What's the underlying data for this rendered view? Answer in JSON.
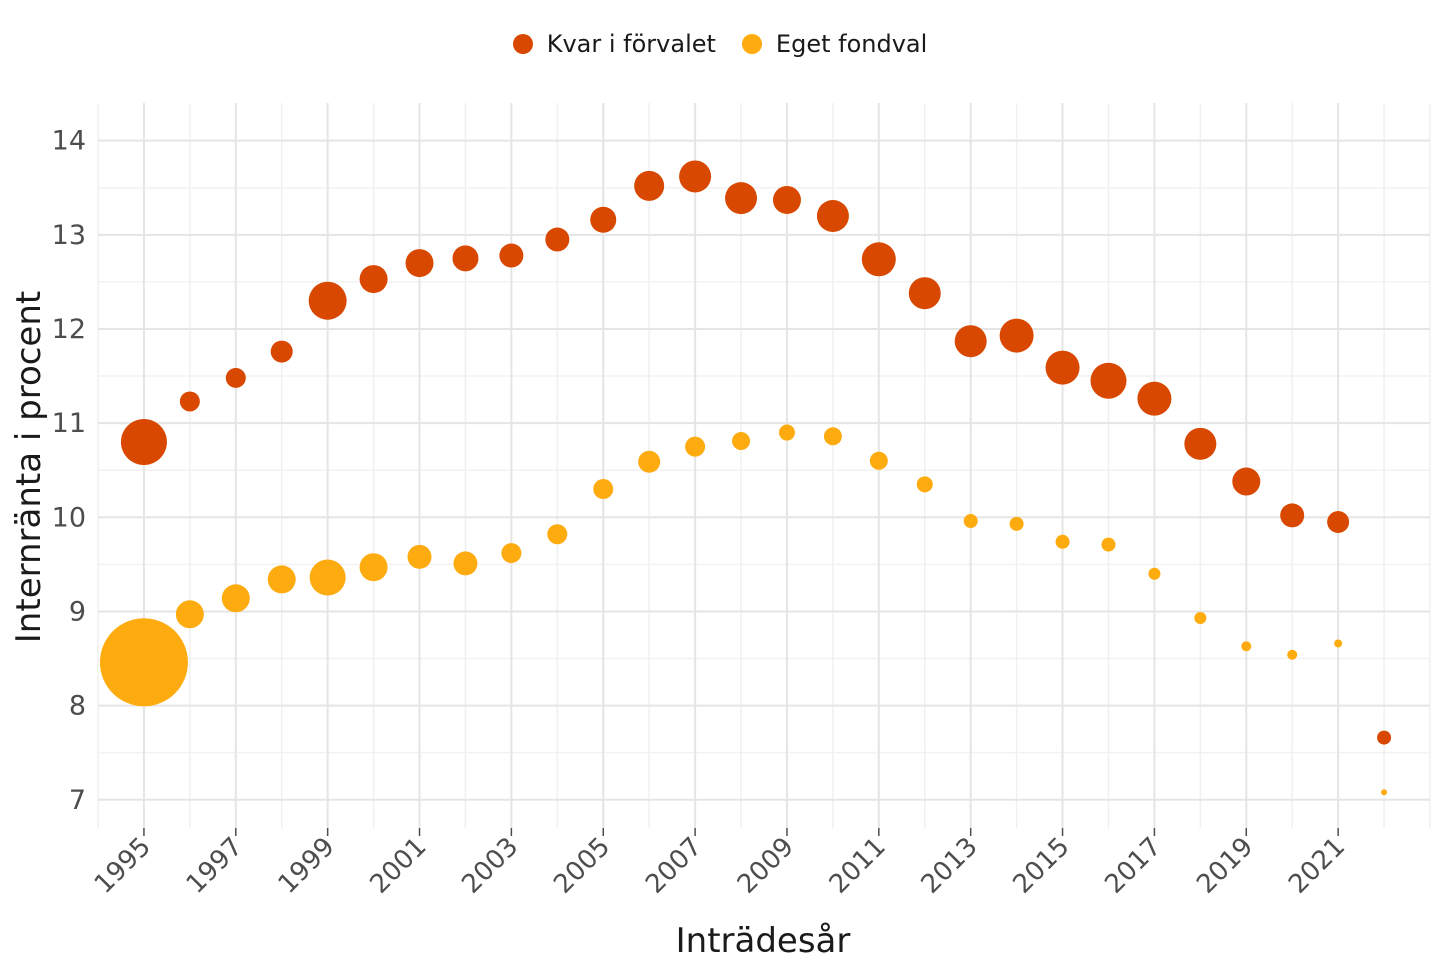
{
  "chart_data": {
    "type": "scatter",
    "xlabel": "Inträdesår",
    "ylabel": "Internränta i procent",
    "xlim": [
      1994,
      2023
    ],
    "ylim": [
      6.7,
      14.4
    ],
    "y_ticks": [
      7,
      8,
      9,
      10,
      11,
      12,
      13,
      14
    ],
    "x_tick_labels": [
      "1995",
      "1997",
      "1999",
      "2001",
      "2003",
      "2005",
      "2007",
      "2009",
      "2011",
      "2013",
      "2015",
      "2017",
      "2019",
      "2021"
    ],
    "grid": true,
    "legend": {
      "position": "top"
    },
    "series": [
      {
        "name": "Kvar i förvalet",
        "color": "#d94801",
        "points": [
          {
            "x": 1995,
            "y": 10.8,
            "size": 23
          },
          {
            "x": 1996,
            "y": 11.23,
            "size": 10
          },
          {
            "x": 1997,
            "y": 11.48,
            "size": 10
          },
          {
            "x": 1998,
            "y": 11.76,
            "size": 11
          },
          {
            "x": 1999,
            "y": 12.3,
            "size": 19
          },
          {
            "x": 2000,
            "y": 12.53,
            "size": 14
          },
          {
            "x": 2001,
            "y": 12.7,
            "size": 14
          },
          {
            "x": 2002,
            "y": 12.75,
            "size": 13
          },
          {
            "x": 2003,
            "y": 12.78,
            "size": 12
          },
          {
            "x": 2004,
            "y": 12.95,
            "size": 12
          },
          {
            "x": 2005,
            "y": 13.16,
            "size": 13
          },
          {
            "x": 2006,
            "y": 13.52,
            "size": 15
          },
          {
            "x": 2007,
            "y": 13.62,
            "size": 16
          },
          {
            "x": 2008,
            "y": 13.39,
            "size": 16
          },
          {
            "x": 2009,
            "y": 13.37,
            "size": 14
          },
          {
            "x": 2010,
            "y": 13.2,
            "size": 16
          },
          {
            "x": 2011,
            "y": 12.74,
            "size": 17
          },
          {
            "x": 2012,
            "y": 12.38,
            "size": 16
          },
          {
            "x": 2013,
            "y": 11.87,
            "size": 16
          },
          {
            "x": 2014,
            "y": 11.93,
            "size": 17
          },
          {
            "x": 2015,
            "y": 11.59,
            "size": 17
          },
          {
            "x": 2016,
            "y": 11.45,
            "size": 18
          },
          {
            "x": 2017,
            "y": 11.26,
            "size": 17
          },
          {
            "x": 2018,
            "y": 10.78,
            "size": 16
          },
          {
            "x": 2019,
            "y": 10.38,
            "size": 14
          },
          {
            "x": 2020,
            "y": 10.02,
            "size": 12
          },
          {
            "x": 2021,
            "y": 9.95,
            "size": 11
          },
          {
            "x": 2022,
            "y": 7.66,
            "size": 7
          }
        ]
      },
      {
        "name": "Eget fondval",
        "color": "#fdab0f",
        "points": [
          {
            "x": 1995,
            "y": 8.46,
            "size": 44
          },
          {
            "x": 1996,
            "y": 8.97,
            "size": 14
          },
          {
            "x": 1997,
            "y": 9.14,
            "size": 14
          },
          {
            "x": 1998,
            "y": 9.34,
            "size": 14
          },
          {
            "x": 1999,
            "y": 9.36,
            "size": 18
          },
          {
            "x": 2000,
            "y": 9.47,
            "size": 14
          },
          {
            "x": 2001,
            "y": 9.58,
            "size": 12
          },
          {
            "x": 2002,
            "y": 9.51,
            "size": 12
          },
          {
            "x": 2003,
            "y": 9.62,
            "size": 10
          },
          {
            "x": 2004,
            "y": 9.82,
            "size": 10
          },
          {
            "x": 2005,
            "y": 10.3,
            "size": 10
          },
          {
            "x": 2006,
            "y": 10.59,
            "size": 11
          },
          {
            "x": 2007,
            "y": 10.75,
            "size": 10
          },
          {
            "x": 2008,
            "y": 10.81,
            "size": 9
          },
          {
            "x": 2009,
            "y": 10.9,
            "size": 8
          },
          {
            "x": 2010,
            "y": 10.86,
            "size": 9
          },
          {
            "x": 2011,
            "y": 10.6,
            "size": 9
          },
          {
            "x": 2012,
            "y": 10.35,
            "size": 8
          },
          {
            "x": 2013,
            "y": 9.96,
            "size": 7
          },
          {
            "x": 2014,
            "y": 9.93,
            "size": 7
          },
          {
            "x": 2015,
            "y": 9.74,
            "size": 7
          },
          {
            "x": 2016,
            "y": 9.71,
            "size": 7
          },
          {
            "x": 2017,
            "y": 9.4,
            "size": 6
          },
          {
            "x": 2018,
            "y": 8.93,
            "size": 6
          },
          {
            "x": 2019,
            "y": 8.63,
            "size": 5
          },
          {
            "x": 2020,
            "y": 8.54,
            "size": 5
          },
          {
            "x": 2021,
            "y": 8.66,
            "size": 4
          },
          {
            "x": 2022,
            "y": 7.08,
            "size": 3
          }
        ]
      }
    ]
  }
}
